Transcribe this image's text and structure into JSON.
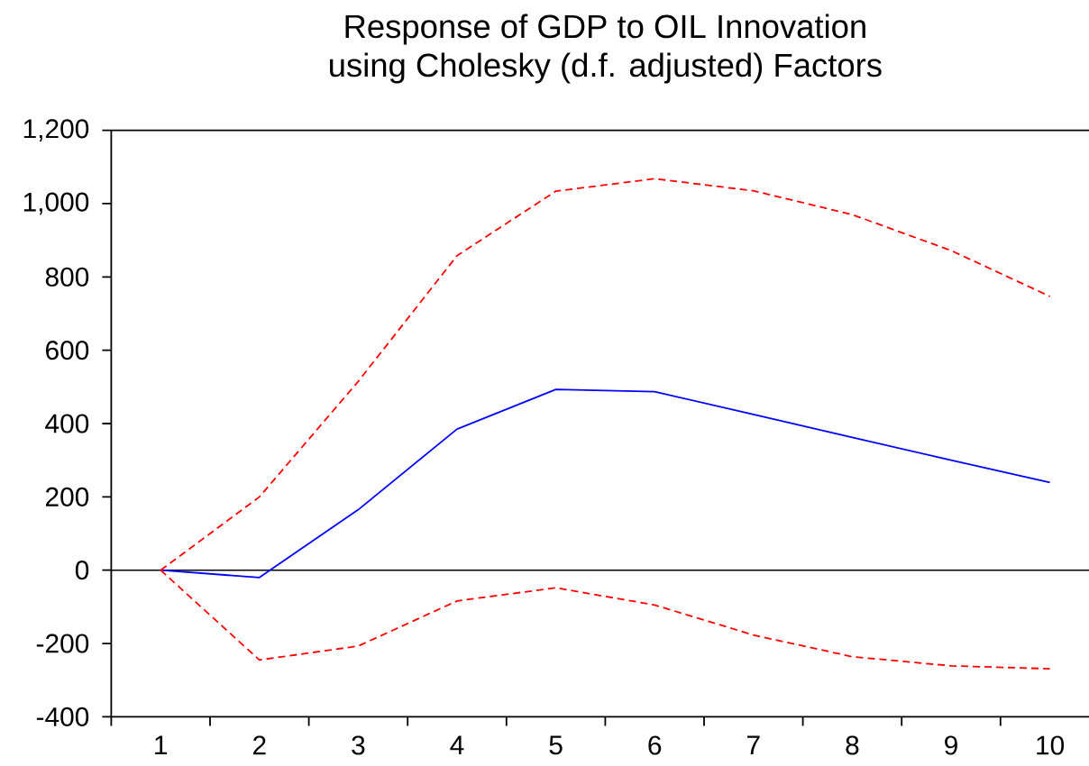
{
  "chart_data": {
    "type": "line",
    "title": "Response of GDP to OIL Innovation",
    "subtitle": "using Cholesky (d.f. adjusted) Factors",
    "categories": [
      "1",
      "2",
      "3",
      "4",
      "5",
      "6",
      "7",
      "8",
      "9",
      "10"
    ],
    "line_style": "solid",
    "series": [
      {
        "color": "#0000ff",
        "values": [
          0,
          -20,
          165,
          385,
          493,
          487,
          425,
          362,
          300,
          239
        ]
      },
      {
        "color": "#ff0000",
        "line_style": "dashed",
        "values": [
          0,
          200,
          515,
          858,
          1034,
          1068,
          1035,
          970,
          872,
          747
        ]
      },
      {
        "color": "#ff0000",
        "line_style": "dashed",
        "values": [
          0,
          -245,
          -207,
          -84,
          -48,
          -95,
          -177,
          -236,
          -261,
          -269
        ]
      }
    ],
    "ylim": [
      -400,
      1200
    ],
    "yticks": [
      -400,
      -200,
      0,
      200,
      400,
      600,
      800,
      {
        "value": 1000,
        "label": "1,000"
      },
      {
        "value": 1200,
        "label": "1,200"
      }
    ],
    "ref_lines": [
      {
        "axis": "y",
        "value": 0,
        "color": "#000000"
      }
    ]
  }
}
